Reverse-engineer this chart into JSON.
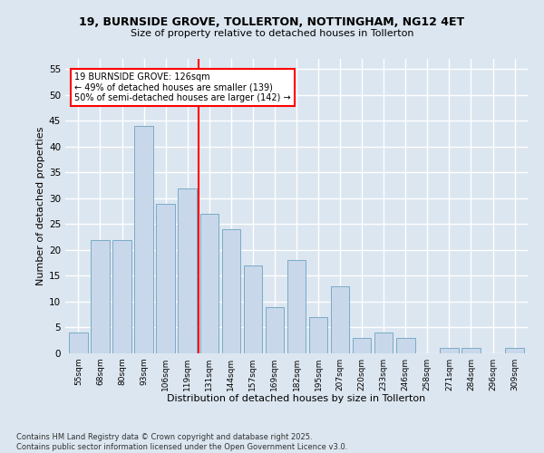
{
  "title_line1": "19, BURNSIDE GROVE, TOLLERTON, NOTTINGHAM, NG12 4ET",
  "title_line2": "Size of property relative to detached houses in Tollerton",
  "xlabel": "Distribution of detached houses by size in Tollerton",
  "ylabel": "Number of detached properties",
  "footer": "Contains HM Land Registry data © Crown copyright and database right 2025.\nContains public sector information licensed under the Open Government Licence v3.0.",
  "categories": [
    "55sqm",
    "68sqm",
    "80sqm",
    "93sqm",
    "106sqm",
    "119sqm",
    "131sqm",
    "144sqm",
    "157sqm",
    "169sqm",
    "182sqm",
    "195sqm",
    "207sqm",
    "220sqm",
    "233sqm",
    "246sqm",
    "258sqm",
    "271sqm",
    "284sqm",
    "296sqm",
    "309sqm"
  ],
  "values": [
    4,
    22,
    22,
    44,
    29,
    32,
    27,
    24,
    17,
    9,
    18,
    7,
    13,
    3,
    4,
    3,
    0,
    1,
    1,
    0,
    1
  ],
  "bar_color": "#c8d8ea",
  "bar_edge_color": "#7aaac8",
  "background_color": "#dce6f0",
  "grid_color": "#ffffff",
  "vline_x": 5.5,
  "vline_color": "red",
  "annotation_text": "19 BURNSIDE GROVE: 126sqm\n← 49% of detached houses are smaller (139)\n50% of semi-detached houses are larger (142) →",
  "annotation_box_color": "white",
  "annotation_box_edge": "red",
  "ylim": [
    0,
    57
  ],
  "yticks": [
    0,
    5,
    10,
    15,
    20,
    25,
    30,
    35,
    40,
    45,
    50,
    55
  ]
}
